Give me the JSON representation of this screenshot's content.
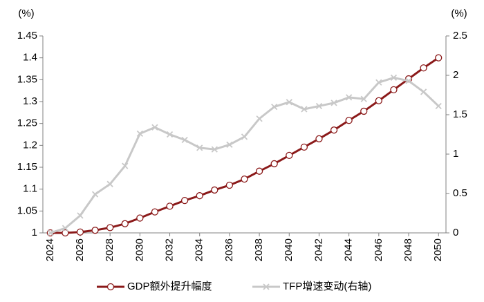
{
  "chart_data": {
    "type": "line",
    "y_label": "(%)",
    "y2_label": "(%)",
    "x": [
      2024,
      2025,
      2026,
      2027,
      2028,
      2029,
      2030,
      2031,
      2032,
      2033,
      2034,
      2035,
      2036,
      2037,
      2038,
      2039,
      2040,
      2041,
      2042,
      2043,
      2044,
      2045,
      2046,
      2047,
      2048,
      2049,
      2050
    ],
    "xlim": [
      2023.5,
      2050.5
    ],
    "xticks": [
      2024,
      2026,
      2028,
      2030,
      2032,
      2034,
      2036,
      2038,
      2040,
      2042,
      2044,
      2046,
      2048,
      2050
    ],
    "ylim": [
      1,
      1.45
    ],
    "yticks": [
      1,
      1.05,
      1.1,
      1.15,
      1.2,
      1.25,
      1.3,
      1.35,
      1.4,
      1.45
    ],
    "y2lim": [
      0,
      2.5
    ],
    "y2ticks": [
      0,
      0.5,
      1,
      1.5,
      2,
      2.5
    ],
    "grid": false,
    "legend": "bottom",
    "series": [
      {
        "name": "GDP额外提升幅度",
        "color": "#8b1a1a",
        "marker": "circle",
        "values": [
          1.0,
          1.0,
          1.002,
          1.006,
          1.012,
          1.021,
          1.034,
          1.048,
          1.061,
          1.074,
          1.085,
          1.098,
          1.109,
          1.123,
          1.141,
          1.158,
          1.177,
          1.196,
          1.215,
          1.235,
          1.257,
          1.278,
          1.302,
          1.327,
          1.352,
          1.377,
          1.4
        ]
      },
      {
        "name": "TFP增速变动(右轴)",
        "color": "#c8c8c8",
        "marker": "x",
        "axis": "y2",
        "values": [
          0,
          0.06,
          0.22,
          0.49,
          0.62,
          0.85,
          1.26,
          1.34,
          1.25,
          1.18,
          1.08,
          1.06,
          1.12,
          1.22,
          1.45,
          1.6,
          1.66,
          1.57,
          1.61,
          1.65,
          1.72,
          1.7,
          1.91,
          1.97,
          1.93,
          1.79,
          1.61
        ]
      }
    ]
  }
}
